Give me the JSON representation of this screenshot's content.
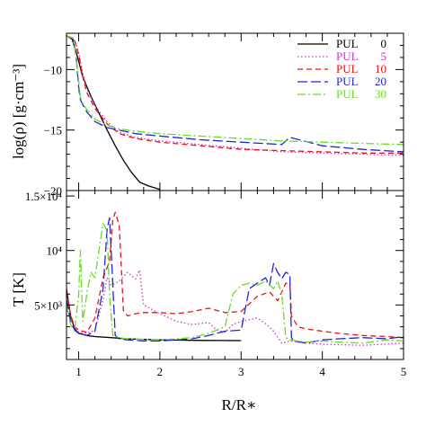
{
  "chart_data": [
    {
      "type": "line",
      "panel": "top",
      "ylabel": "log(ρ)  [g·cm⁻³]",
      "xlim": [
        0.85,
        5
      ],
      "ylim": [
        -20,
        -7
      ],
      "ytick_labels": [
        "−10",
        "−15",
        "−20"
      ],
      "ytick_values": [
        -10,
        -15,
        -20
      ],
      "legend_position": "top-right",
      "legend": [
        {
          "label": "PUL",
          "value": "0",
          "color": "#000000",
          "dash": "solid"
        },
        {
          "label": "PUL",
          "value": "5",
          "color": "#cc33cc",
          "dash": "dotted"
        },
        {
          "label": "PUL",
          "value": "10",
          "color": "#ee1111",
          "dash": "dashed"
        },
        {
          "label": "PUL",
          "value": "20",
          "color": "#2222dd",
          "dash": "longdash"
        },
        {
          "label": "PUL",
          "value": "30",
          "color": "#66dd22",
          "dash": "dashdot"
        }
      ],
      "series": [
        {
          "name": "PUL 0",
          "color": "#000000",
          "dash": "solid",
          "x": [
            0.85,
            0.92,
            0.98,
            1.05,
            1.15,
            1.25,
            1.35,
            1.45,
            1.55,
            1.65,
            1.75,
            1.85,
            2.0
          ],
          "y": [
            -7.2,
            -7.5,
            -8.8,
            -10.6,
            -12.2,
            -13.6,
            -15.0,
            -16.3,
            -17.5,
            -18.5,
            -19.3,
            -19.6,
            -19.9
          ]
        },
        {
          "name": "PUL 5",
          "color": "#cc33cc",
          "dash": "dotted",
          "x": [
            0.85,
            0.95,
            1.0,
            1.05,
            1.1,
            1.2,
            1.35,
            1.5,
            1.7,
            2.0,
            2.5,
            3.0,
            3.5,
            4.0,
            4.5,
            5.0
          ],
          "y": [
            -7.2,
            -7.6,
            -8.6,
            -10.3,
            -11.6,
            -13.0,
            -14.3,
            -15.2,
            -15.6,
            -15.9,
            -16.2,
            -16.5,
            -16.8,
            -16.9,
            -17.0,
            -17.1
          ]
        },
        {
          "name": "PUL 10",
          "color": "#ee1111",
          "dash": "dashed",
          "x": [
            0.85,
            0.95,
            1.0,
            1.05,
            1.1,
            1.2,
            1.35,
            1.5,
            1.7,
            2.0,
            2.5,
            3.0,
            3.5,
            4.0,
            4.5,
            5.0
          ],
          "y": [
            -7.2,
            -7.6,
            -8.8,
            -10.6,
            -11.9,
            -13.2,
            -14.5,
            -15.3,
            -15.7,
            -16.0,
            -16.3,
            -16.6,
            -16.7,
            -16.8,
            -16.9,
            -16.9
          ]
        },
        {
          "name": "PUL 20",
          "color": "#2222dd",
          "dash": "longdash",
          "x": [
            0.85,
            0.93,
            0.97,
            1.0,
            1.02,
            1.05,
            1.1,
            1.2,
            1.35,
            1.5,
            1.7,
            2.0,
            2.5,
            3.0,
            3.5,
            3.6,
            4.0,
            4.5,
            5.0
          ],
          "y": [
            -7.2,
            -7.4,
            -9.0,
            -11.5,
            -12.5,
            -12.9,
            -13.5,
            -14.3,
            -14.8,
            -15.0,
            -15.3,
            -15.5,
            -15.8,
            -16.0,
            -16.2,
            -15.6,
            -16.3,
            -16.6,
            -16.8
          ]
        },
        {
          "name": "PUL 30",
          "color": "#66dd22",
          "dash": "dashdot",
          "x": [
            0.85,
            0.93,
            0.97,
            1.0,
            1.02,
            1.05,
            1.1,
            1.2,
            1.35,
            1.5,
            1.7,
            2.0,
            2.5,
            3.0,
            3.5,
            4.0,
            4.5,
            5.0
          ],
          "y": [
            -7.2,
            -7.4,
            -9.0,
            -11.0,
            -12.3,
            -12.8,
            -13.3,
            -14.1,
            -14.6,
            -14.9,
            -15.1,
            -15.3,
            -15.5,
            -15.7,
            -15.9,
            -16.0,
            -16.1,
            -16.2
          ]
        }
      ]
    },
    {
      "type": "line",
      "panel": "bottom",
      "xlabel": "R/R∗",
      "ylabel": "T  [K]",
      "xlim": [
        0.85,
        5
      ],
      "ylim": [
        0,
        15500
      ],
      "xtick_labels": [
        "1",
        "2",
        "3",
        "4",
        "5"
      ],
      "xtick_values": [
        1,
        2,
        3,
        4,
        5
      ],
      "ytick_labels": [
        "5×10³",
        "10⁴",
        "1.5×10⁴"
      ],
      "ytick_values": [
        5000,
        10000,
        15000
      ],
      "series": [
        {
          "name": "PUL 0",
          "color": "#000000",
          "dash": "solid",
          "x": [
            0.85,
            0.9,
            0.95,
            1.0,
            1.1,
            1.2,
            1.4,
            1.6,
            1.8,
            2.0,
            2.2,
            2.4,
            2.6,
            2.8,
            3.0
          ],
          "y": [
            6500,
            4000,
            2800,
            2400,
            2200,
            2100,
            2000,
            1900,
            1850,
            1800,
            1780,
            1760,
            1750,
            1740,
            1730
          ]
        },
        {
          "name": "PUL 5",
          "color": "#cc33cc",
          "dash": "dotted",
          "x": [
            0.85,
            0.9,
            0.95,
            1.0,
            1.1,
            1.2,
            1.3,
            1.35,
            1.4,
            1.5,
            1.6,
            1.7,
            1.75,
            1.8,
            1.9,
            2.0,
            2.2,
            2.4,
            2.6,
            2.7,
            2.8,
            2.9,
            3.0,
            3.2,
            3.3,
            3.4,
            3.5,
            3.6,
            3.8,
            4.0,
            4.5,
            5.0
          ],
          "y": [
            6000,
            4000,
            3000,
            2500,
            2400,
            2700,
            5500,
            7500,
            6800,
            7200,
            8000,
            7400,
            8200,
            5000,
            4600,
            4200,
            3500,
            3200,
            3400,
            2700,
            2500,
            3200,
            3500,
            3800,
            3300,
            2600,
            1500,
            1700,
            1500,
            1400,
            1300,
            1500
          ]
        },
        {
          "name": "PUL 10",
          "color": "#ee1111",
          "dash": "dashed",
          "x": [
            0.85,
            0.9,
            0.95,
            1.0,
            1.1,
            1.2,
            1.3,
            1.38,
            1.42,
            1.45,
            1.5,
            1.55,
            1.6,
            1.7,
            1.8,
            2.0,
            2.2,
            2.4,
            2.6,
            2.8,
            3.0,
            3.2,
            3.35,
            3.45,
            3.55,
            3.6,
            3.62,
            3.7,
            3.8,
            4.0,
            4.2,
            4.5,
            4.8,
            5.0
          ],
          "y": [
            6300,
            4100,
            3000,
            2700,
            2500,
            3800,
            7500,
            9000,
            12800,
            13500,
            12300,
            4500,
            4000,
            4200,
            4300,
            4300,
            4200,
            4400,
            4700,
            4300,
            4400,
            5800,
            6200,
            5400,
            7000,
            6900,
            4000,
            3000,
            2800,
            2600,
            2400,
            2200,
            2100,
            2000
          ]
        },
        {
          "name": "PUL 20",
          "color": "#2222dd",
          "dash": "longdash",
          "x": [
            0.85,
            0.9,
            0.95,
            1.0,
            1.1,
            1.2,
            1.3,
            1.35,
            1.38,
            1.4,
            1.45,
            1.5,
            1.6,
            1.8,
            2.0,
            2.2,
            2.4,
            2.6,
            2.8,
            3.0,
            3.1,
            3.2,
            3.3,
            3.35,
            3.4,
            3.45,
            3.5,
            3.55,
            3.6,
            3.62,
            3.65,
            3.8,
            4.0,
            4.2,
            4.5,
            4.8,
            5.0
          ],
          "y": [
            5500,
            3500,
            2700,
            2400,
            2200,
            2600,
            6500,
            12000,
            13000,
            10000,
            2200,
            1900,
            1800,
            1700,
            1700,
            1800,
            1900,
            2200,
            2600,
            2700,
            6500,
            7000,
            7500,
            6800,
            8800,
            8000,
            7400,
            8000,
            7800,
            2000,
            1700,
            1500,
            1800,
            1900,
            2000,
            1900,
            2100
          ]
        },
        {
          "name": "PUL 30",
          "color": "#66dd22",
          "dash": "dashdot",
          "x": [
            0.85,
            0.9,
            0.95,
            1.0,
            1.02,
            1.05,
            1.1,
            1.15,
            1.2,
            1.3,
            1.35,
            1.38,
            1.42,
            1.5,
            1.6,
            1.8,
            2.0,
            2.2,
            2.4,
            2.6,
            2.8,
            2.9,
            3.0,
            3.1,
            3.2,
            3.3,
            3.4,
            3.45,
            3.5,
            3.55,
            3.6,
            3.7,
            3.8,
            4.0,
            4.2,
            4.5,
            4.8,
            5.0
          ],
          "y": [
            5000,
            3200,
            2600,
            6000,
            10000,
            3500,
            6000,
            8000,
            7500,
            12500,
            11800,
            6000,
            2200,
            2000,
            1900,
            1850,
            1800,
            1900,
            2000,
            2400,
            3000,
            6000,
            6800,
            7000,
            6800,
            7200,
            6500,
            7200,
            6000,
            2000,
            1800,
            1700,
            1600,
            1700,
            1600,
            1500,
            1800,
            1700
          ]
        }
      ]
    }
  ]
}
